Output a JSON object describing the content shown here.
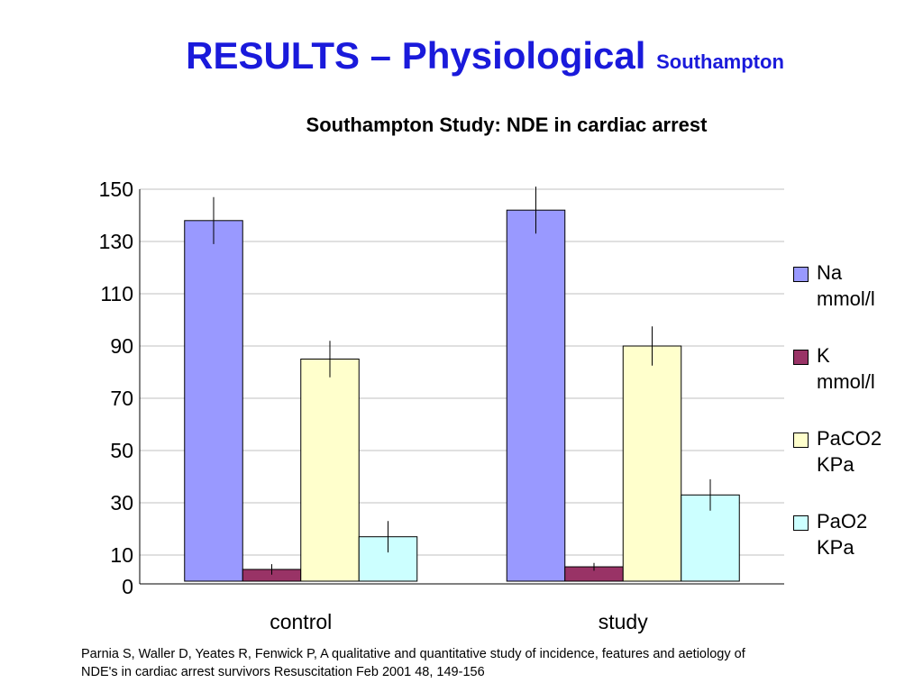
{
  "slide": {
    "title": "RESULTS – Physiological",
    "title_suffix": "Southampton",
    "citation_line1": "Parnia S, Waller D, Yeates R, Fenwick P, A qualitative and quantitative study of  incidence, features and aetiology of",
    "citation_line2": "NDE's in cardiac arrest survivors Resuscitation Feb 2001 48, 149-156"
  },
  "chart_data": {
    "type": "bar",
    "title": "Southampton Study: NDE in cardiac arrest",
    "categories": [
      "control",
      "study"
    ],
    "series": [
      {
        "name": "Na mmol/l",
        "name_lines": [
          "Na",
          "mmol/l"
        ],
        "color": "#9999ff",
        "values": [
          138,
          142
        ],
        "error": [
          9,
          9
        ]
      },
      {
        "name": "K mmol/l",
        "name_lines": [
          "K",
          "mmol/l"
        ],
        "color": "#993366",
        "values": [
          4.5,
          5.5
        ],
        "error": [
          2,
          1.5
        ]
      },
      {
        "name": "PaCO2 KPa",
        "name_lines": [
          "PaCO2",
          "KPa"
        ],
        "color": "#ffffcc",
        "values": [
          85,
          90
        ],
        "error": [
          7,
          7.5
        ]
      },
      {
        "name": "PaO2 KPa",
        "name_lines": [
          "PaO2",
          "KPa"
        ],
        "color": "#ccffff",
        "values": [
          17,
          33
        ],
        "error": [
          6,
          6
        ]
      }
    ],
    "y_ticks": [
      0,
      10,
      30,
      50,
      70,
      90,
      110,
      130,
      150
    ],
    "ylim": [
      0,
      150
    ],
    "grid": true,
    "legend": "right"
  }
}
